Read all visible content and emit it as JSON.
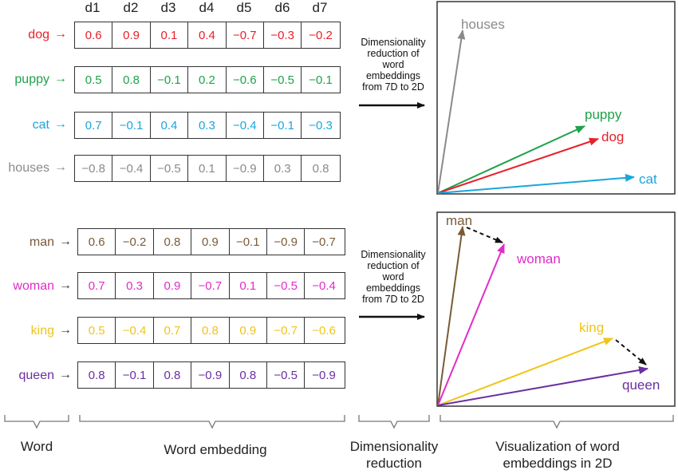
{
  "dimensions": [
    "d1",
    "d2",
    "d3",
    "d4",
    "d5",
    "d6",
    "d7"
  ],
  "group1": [
    {
      "word": "dog",
      "color": "#e8202a",
      "values": [
        "0.6",
        "0.9",
        "0.1",
        "0.4",
        "−0.7",
        "−0.3",
        "−0.2"
      ]
    },
    {
      "word": "puppy",
      "color": "#1ea24a",
      "values": [
        "0.5",
        "0.8",
        "−0.1",
        "0.2",
        "−0.6",
        "−0.5",
        "−0.1"
      ]
    },
    {
      "word": "cat",
      "color": "#1aa6dc",
      "values": [
        "0.7",
        "−0.1",
        "0.4",
        "0.3",
        "−0.4",
        "−0.1",
        "−0.3"
      ]
    },
    {
      "word": "houses",
      "color": "#8a8a8a",
      "values": [
        "−0.8",
        "−0.4",
        "−0.5",
        "0.1",
        "−0.9",
        "0.3",
        "0.8"
      ]
    }
  ],
  "group2": [
    {
      "word": "man",
      "color": "#7b5a36",
      "values": [
        "0.6",
        "−0.2",
        "0.8",
        "0.9",
        "−0.1",
        "−0.9",
        "−0.7"
      ]
    },
    {
      "word": "woman",
      "color": "#e22bc8",
      "values": [
        "0.7",
        "0.3",
        "0.9",
        "−0.7",
        "0.1",
        "−0.5",
        "−0.4"
      ]
    },
    {
      "word": "king",
      "color": "#f0c419",
      "values": [
        "0.5",
        "−0.4",
        "0.7",
        "0.8",
        "0.9",
        "−0.7",
        "−0.6"
      ]
    },
    {
      "word": "queen",
      "color": "#6a2fa0",
      "values": [
        "0.8",
        "−0.1",
        "0.8",
        "−0.9",
        "0.8",
        "−0.5",
        "−0.9"
      ]
    }
  ],
  "reduction": {
    "line1": "Dimensionality",
    "line2": "reduction of",
    "line3": "word",
    "line4": "embeddings",
    "line5": "from 7D to 2D"
  },
  "plot1_labels": {
    "houses": "houses",
    "puppy": "puppy",
    "dog": "dog",
    "cat": "cat"
  },
  "plot2_labels": {
    "man": "man",
    "woman": "woman",
    "king": "king",
    "queen": "queen"
  },
  "captions": {
    "word": "Word",
    "embedding": "Word embedding",
    "reduction_line1": "Dimensionality",
    "reduction_line2": "reduction",
    "viz_line1": "Visualization of word",
    "viz_line2": "embeddings in 2D"
  }
}
